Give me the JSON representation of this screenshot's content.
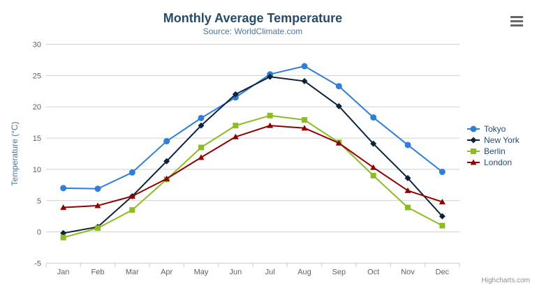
{
  "chart_data": {
    "type": "line",
    "title": "Monthly Average Temperature",
    "subtitle": "Source: WorldClimate.com",
    "xlabel": "",
    "ylabel": "Temperature (°C)",
    "categories": [
      "Jan",
      "Feb",
      "Mar",
      "Apr",
      "May",
      "Jun",
      "Jul",
      "Aug",
      "Sep",
      "Oct",
      "Nov",
      "Dec"
    ],
    "ylim": [
      -5,
      30
    ],
    "ytick_interval": 5,
    "grid": true,
    "legend_position": "right",
    "series": [
      {
        "name": "Tokyo",
        "color": "#2f7ed8",
        "marker": "circle",
        "values": [
          7.0,
          6.9,
          9.5,
          14.5,
          18.2,
          21.5,
          25.2,
          26.5,
          23.3,
          18.3,
          13.9,
          9.6
        ]
      },
      {
        "name": "New York",
        "color": "#0d233a",
        "marker": "diamond",
        "values": [
          -0.2,
          0.8,
          5.7,
          11.3,
          17.0,
          22.0,
          24.8,
          24.1,
          20.1,
          14.1,
          8.6,
          2.5
        ]
      },
      {
        "name": "Berlin",
        "color": "#8bbc21",
        "marker": "square",
        "values": [
          -0.9,
          0.6,
          3.5,
          8.4,
          13.5,
          17.0,
          18.6,
          17.9,
          14.3,
          9.0,
          3.9,
          1.0
        ]
      },
      {
        "name": "London",
        "color": "#910000",
        "marker": "triangle",
        "values": [
          3.9,
          4.2,
          5.7,
          8.5,
          11.9,
          15.2,
          17.0,
          16.6,
          14.2,
          10.3,
          6.6,
          4.8
        ]
      }
    ],
    "credits": "Highcharts.com"
  },
  "toolbar": {
    "context_button_icon": "hamburger-menu-icon"
  },
  "style": {
    "title_color": "#274b6d",
    "subtitle_color": "#4d759e",
    "axis_title_color": "#4d759e",
    "tick_label_color": "#606060",
    "gridline_color": "#d0d0d0",
    "axis_line_color": "#c0d0e0",
    "legend_text_color": "#274b6d",
    "credits_color": "#909090",
    "menu_icon_color": "#666666"
  }
}
